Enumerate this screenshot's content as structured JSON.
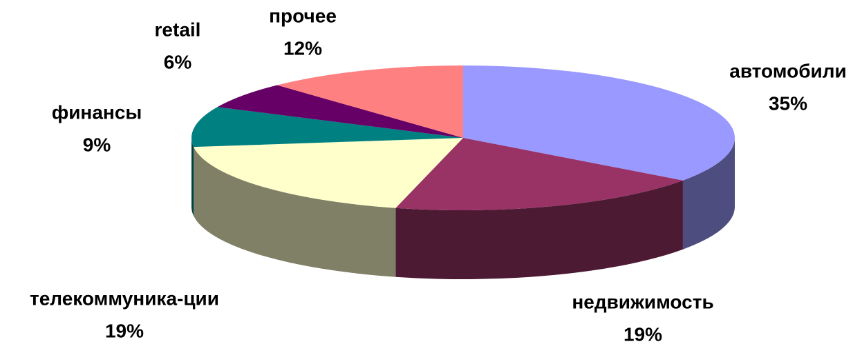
{
  "chart_data": {
    "type": "pie",
    "categories": [
      "автомобили",
      "недвижимость",
      "телекоммуника-ции",
      "финансы",
      "retail",
      "прочее"
    ],
    "values": [
      35,
      19,
      19,
      9,
      6,
      12
    ],
    "value_labels": [
      "35%",
      "19%",
      "19%",
      "9%",
      "6%",
      "12%"
    ],
    "colors": [
      "#9999ff",
      "#993366",
      "#ffffcc",
      "#008080",
      "#660066",
      "#ff8080"
    ]
  }
}
